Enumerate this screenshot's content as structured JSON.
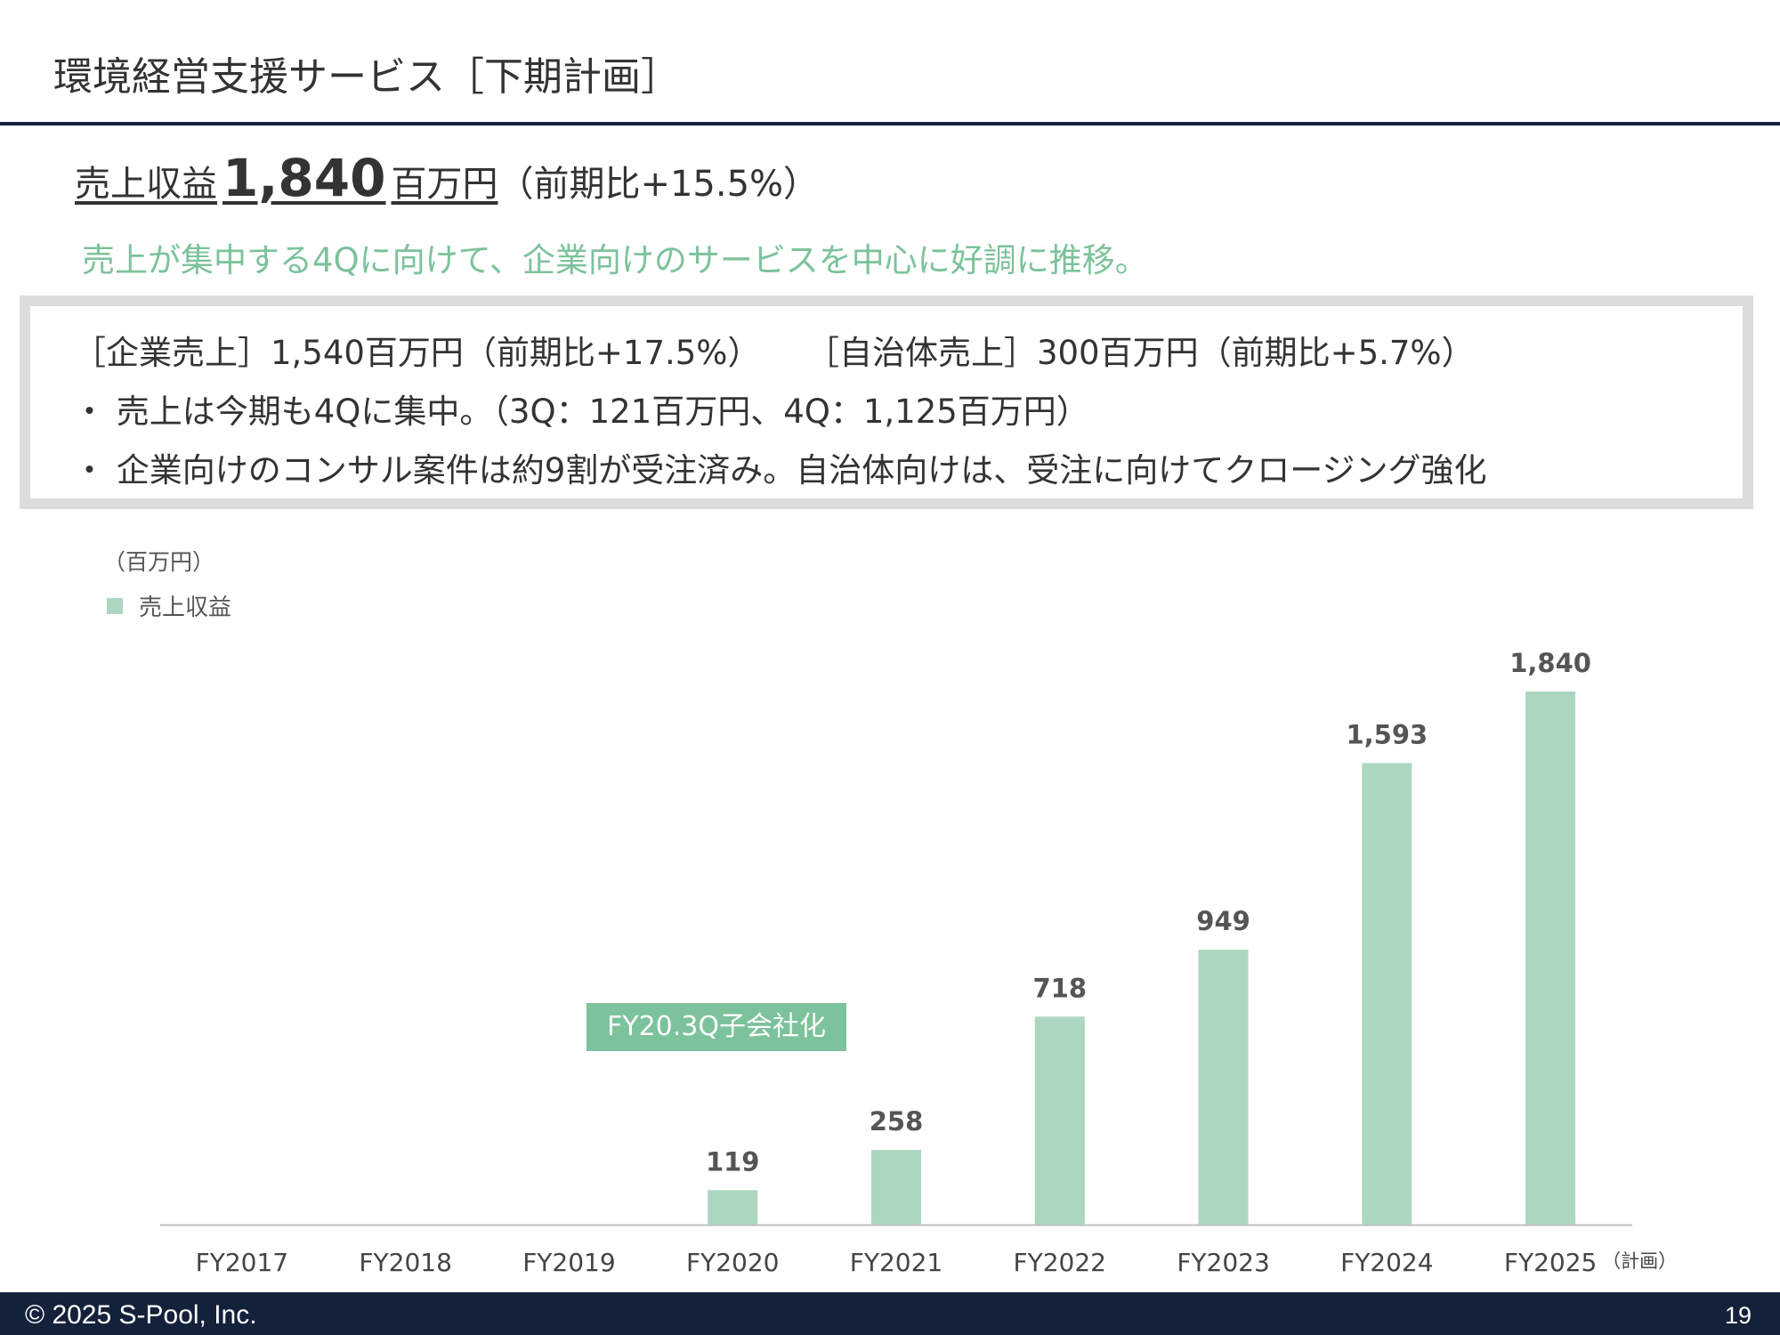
{
  "header": {
    "title": "環境経営支援サービス［下期計画］"
  },
  "headline": {
    "label": "売上収益",
    "value": "1,840",
    "unit": "百万円",
    "change": "（前期比+15.5%）"
  },
  "subheadline": "売上が集中する4Qに向けて、企業向けのサービスを中心に好調に推移。",
  "summary_box": {
    "line1_corporate": "［企業売上］1,540百万円（前期比+17.5%）",
    "line1_municipal": "［自治体売上］300百万円（前期比+5.7%）",
    "line2": "・ 売上は今期も4Qに集中。（3Q：121百万円、4Q：1,125百万円）",
    "line3": "・ 企業向けのコンサル案件は約9割が受注済み。自治体向けは、受注に向けてクロージング強化"
  },
  "chart_unit": "（百万円）",
  "callout": "FY20.3Q子会社化",
  "colors": {
    "bar": "#add6c1",
    "accent": "#7cc29b",
    "navy": "#14213a"
  },
  "chart_data": {
    "type": "bar",
    "categories": [
      "FY2017",
      "FY2018",
      "FY2019",
      "FY2020",
      "FY2021",
      "FY2022",
      "FY2023",
      "FY2024",
      "FY2025"
    ],
    "category_note": {
      "FY2025": "（計画）"
    },
    "series": [
      {
        "name": "売上収益",
        "values": [
          null,
          null,
          null,
          119,
          258,
          718,
          949,
          1593,
          1840
        ]
      }
    ],
    "data_labels": [
      "",
      "",
      "",
      "119",
      "258",
      "718",
      "949",
      "1,593",
      "1,840"
    ],
    "ylim": [
      0,
      1840
    ],
    "grid": false,
    "legend": "top-left"
  },
  "footer": {
    "copyright": "© 2025   S-Pool, Inc.",
    "page": "19"
  }
}
